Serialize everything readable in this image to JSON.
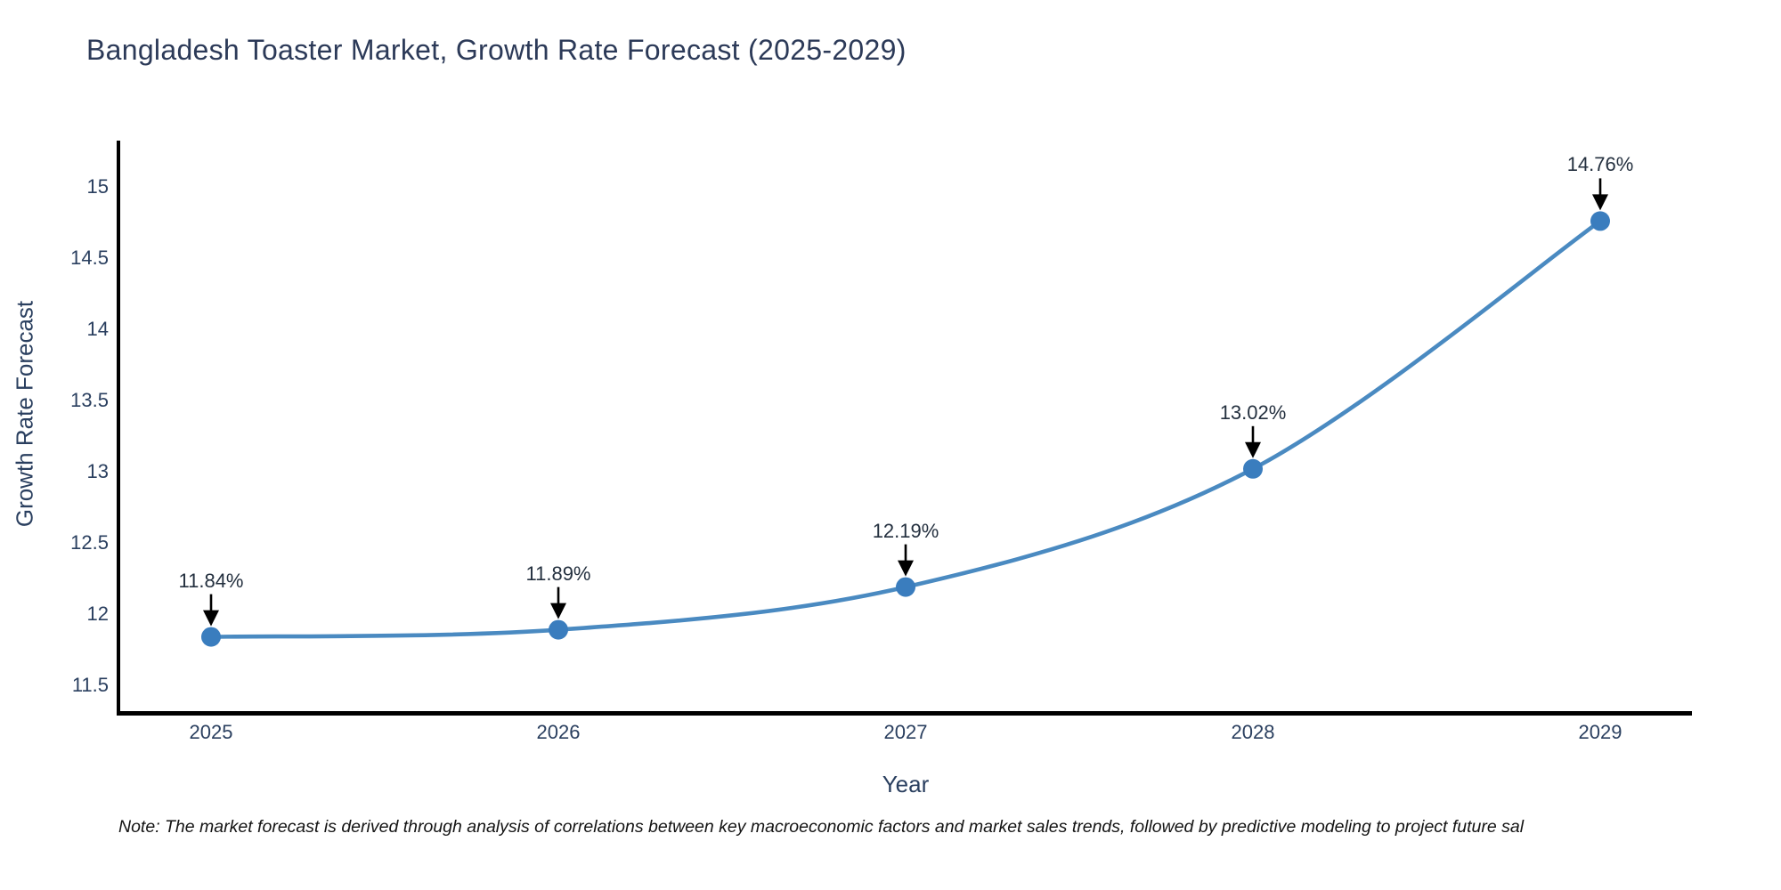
{
  "chart": {
    "title": "Bangladesh Toaster Market, Growth Rate Forecast (2025-2029)",
    "xlabel": "Year",
    "ylabel": "Growth Rate Forecast",
    "note": "Note: The market forecast is derived through analysis of correlations between key macroeconomic factors and market sales trends, followed by predictive modeling to project future sal",
    "colors": {
      "line": "#4a8ac1",
      "marker": "#3a7dbe",
      "axis": "#000000",
      "arrow": "#000000",
      "text": "#2a3f5f",
      "title": "#2c3a58",
      "background": "#ffffff"
    }
  },
  "chart_data": {
    "type": "line",
    "title": "Bangladesh Toaster Market, Growth Rate Forecast (2025-2029)",
    "xlabel": "Year",
    "ylabel": "Growth Rate Forecast",
    "categories": [
      "2025",
      "2026",
      "2027",
      "2028",
      "2029"
    ],
    "series": [
      {
        "name": "Growth Rate Forecast",
        "values": [
          11.84,
          11.89,
          12.19,
          13.02,
          14.76
        ]
      }
    ],
    "point_labels": [
      "11.84%",
      "11.89%",
      "12.19%",
      "13.02%",
      "14.76%"
    ],
    "yticks": [
      11.5,
      12,
      12.5,
      13,
      13.5,
      14,
      14.5,
      15
    ],
    "ylim": [
      11.3,
      15.31
    ],
    "line_shape": "spline",
    "marker": "circle",
    "grid": false,
    "legend": false,
    "annotation_style": "value-label-with-down-arrow-to-point"
  }
}
